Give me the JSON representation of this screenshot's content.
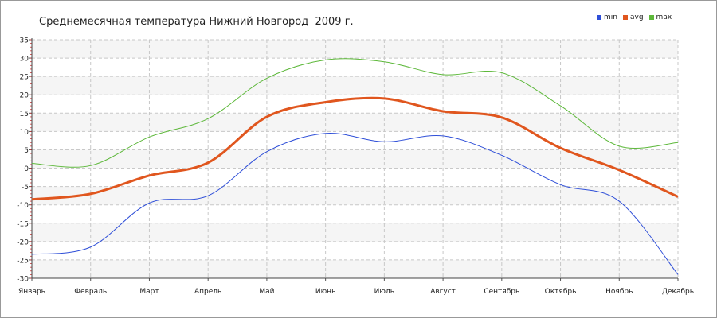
{
  "chart_data": {
    "type": "line",
    "title": "Среднемесячная температура Нижний Новгород  2009 г.",
    "categories": [
      "Январь",
      "Февраль",
      "Март",
      "Апрель",
      "Май",
      "Июнь",
      "Июль",
      "Август",
      "Сентябрь",
      "Октябрь",
      "Ноябрь",
      "Декабрь"
    ],
    "ylim": [
      -30,
      35
    ],
    "yticks": [
      -30,
      -25,
      -20,
      -15,
      -10,
      -5,
      0,
      5,
      10,
      15,
      20,
      25,
      30,
      35
    ],
    "grid": true,
    "legend_position": "top-right",
    "series": [
      {
        "name": "min",
        "color": "#2f4fd8",
        "values": [
          -23.5,
          -21.5,
          -9.5,
          -7.5,
          4.5,
          9.5,
          7.2,
          8.8,
          3.5,
          -4.5,
          -9.0,
          -29.0
        ]
      },
      {
        "name": "avg",
        "color": "#e0561e",
        "values": [
          -8.5,
          -7.0,
          -2.0,
          1.5,
          14.0,
          18.0,
          19.0,
          15.5,
          13.8,
          5.5,
          -0.5,
          -7.8
        ]
      },
      {
        "name": "max",
        "color": "#5db83a",
        "values": [
          1.3,
          0.7,
          8.5,
          13.5,
          24.5,
          29.5,
          29.0,
          25.5,
          26.0,
          17.0,
          6.0,
          7.0
        ]
      }
    ]
  }
}
